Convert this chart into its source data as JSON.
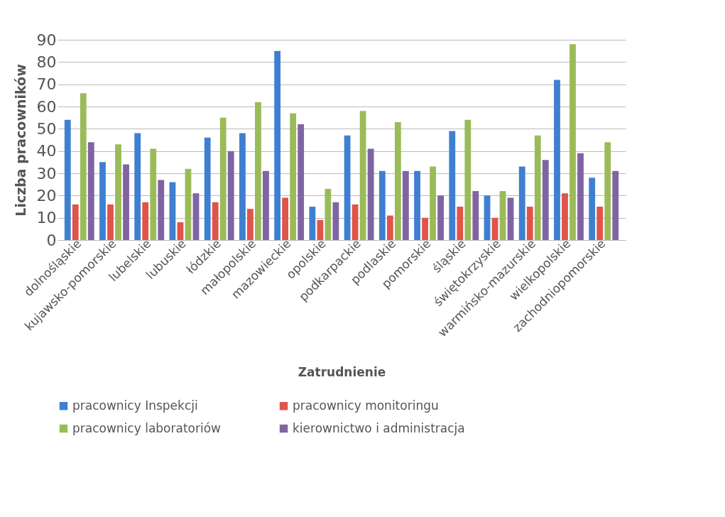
{
  "chart_data": {
    "type": "bar",
    "xlabel": "Zatrudnienie",
    "ylabel": "Liczba pracowników",
    "categories": [
      "dolnośląskie",
      "kujawsko-pomorskie",
      "lubelskie",
      "lubuskie",
      "łódzkie",
      "małopolskie",
      "mazowieckie",
      "opolskie",
      "podkarpackie",
      "podlaskie",
      "pomorskie",
      "śląskie",
      "świętokrzyskie",
      "warmińsko-mazurskie",
      "wielkopolskie",
      "zachodniopomorskie"
    ],
    "series": [
      {
        "name": "pracownicy Inspekcji",
        "color": "#3f7fd0",
        "values": [
          54,
          35,
          48,
          26,
          46,
          48,
          85,
          15,
          47,
          31,
          31,
          49,
          20,
          33,
          72,
          28
        ]
      },
      {
        "name": "pracownicy monitoringu",
        "color": "#e0544a",
        "values": [
          16,
          16,
          17,
          8,
          17,
          14,
          19,
          9,
          16,
          11,
          10,
          15,
          10,
          15,
          21,
          15
        ]
      },
      {
        "name": "pracownicy laboratoriów",
        "color": "#9bbb59",
        "values": [
          66,
          43,
          41,
          32,
          55,
          62,
          57,
          23,
          58,
          53,
          33,
          54,
          22,
          47,
          88,
          44
        ]
      },
      {
        "name": "kierownictwo i administracja",
        "color": "#8064a2",
        "values": [
          44,
          34,
          27,
          21,
          40,
          31,
          52,
          17,
          41,
          31,
          20,
          22,
          19,
          36,
          39,
          31
        ]
      }
    ],
    "ylim": [
      0,
      90
    ],
    "yticks": [
      0,
      10,
      20,
      30,
      40,
      50,
      60,
      70,
      80,
      90
    ],
    "grid": "y",
    "legend": "bottom"
  }
}
